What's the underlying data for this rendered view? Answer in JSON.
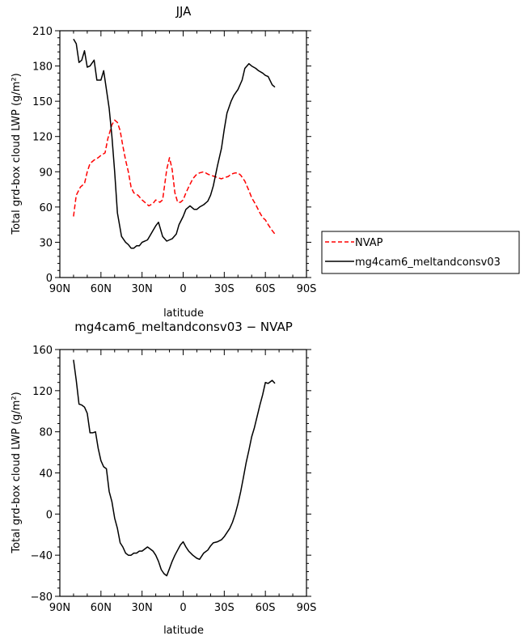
{
  "chart_data": [
    {
      "type": "line",
      "title": "JJA",
      "xlabel": "latitude",
      "ylabel": "Total grd-box cloud LWP (g/m²)",
      "xlim": [
        90,
        -90
      ],
      "ylim": [
        0,
        210
      ],
      "x_ticks": [
        90,
        60,
        30,
        0,
        -30,
        -60,
        -90
      ],
      "x_tick_labels": [
        "90N",
        "60N",
        "30N",
        "0",
        "30S",
        "60S",
        "90S"
      ],
      "y_ticks": [
        0,
        30,
        60,
        90,
        120,
        150,
        180,
        210
      ],
      "y_tick_labels": [
        "0",
        "30",
        "60",
        "90",
        "120",
        "150",
        "180",
        "210"
      ],
      "legend_position": "right",
      "series": [
        {
          "name": "NVAP",
          "color": "#ff0000",
          "dash": "dashed",
          "x": [
            80,
            78,
            75,
            72,
            70,
            68,
            65,
            62,
            60,
            57,
            55,
            52,
            50,
            48,
            46,
            44,
            42,
            40,
            38,
            36,
            33,
            30,
            27,
            25,
            22,
            20,
            17,
            15,
            12,
            10,
            8,
            6,
            4,
            2,
            0,
            -2,
            -4,
            -7,
            -10,
            -12,
            -15,
            -18,
            -20,
            -23,
            -25,
            -28,
            -30,
            -33,
            -35,
            -38,
            -40,
            -42,
            -45,
            -48,
            -50,
            -53,
            -56,
            -58,
            -60,
            -62,
            -65,
            -67
          ],
          "y": [
            52,
            70,
            77,
            80,
            90,
            97,
            100,
            102,
            104,
            106,
            118,
            130,
            134,
            132,
            125,
            112,
            100,
            90,
            77,
            72,
            70,
            66,
            63,
            61,
            63,
            66,
            64,
            66,
            92,
            102,
            92,
            72,
            64,
            64,
            66,
            72,
            77,
            84,
            88,
            89,
            90,
            88,
            87,
            86,
            85,
            84,
            85,
            86,
            88,
            89,
            89,
            87,
            82,
            74,
            68,
            62,
            55,
            51,
            49,
            45,
            40,
            37
          ]
        },
        {
          "name": "mg4cam6_meltandconsv03",
          "color": "#000000",
          "dash": "solid",
          "x": [
            80,
            78,
            76,
            74,
            72,
            70,
            68,
            65,
            63,
            60,
            58,
            56,
            54,
            52,
            50,
            48,
            45,
            42,
            40,
            38,
            36,
            34,
            32,
            30,
            28,
            26,
            24,
            22,
            20,
            18,
            15,
            12,
            10,
            8,
            5,
            3,
            0,
            -2,
            -5,
            -8,
            -10,
            -12,
            -15,
            -18,
            -20,
            -22,
            -25,
            -28,
            -30,
            -32,
            -35,
            -37,
            -40,
            -43,
            -45,
            -48,
            -50,
            -53,
            -55,
            -58,
            -60,
            -62,
            -65,
            -67
          ],
          "y": [
            203,
            199,
            183,
            185,
            193,
            179,
            180,
            185,
            168,
            168,
            176,
            160,
            144,
            120,
            90,
            55,
            35,
            30,
            28,
            25,
            25,
            27,
            27,
            30,
            31,
            32,
            36,
            40,
            44,
            47,
            35,
            31,
            32,
            33,
            37,
            45,
            52,
            58,
            61,
            58,
            58,
            60,
            62,
            65,
            70,
            78,
            95,
            110,
            126,
            140,
            150,
            155,
            160,
            168,
            178,
            182,
            180,
            178,
            176,
            174,
            172,
            171,
            164,
            162
          ]
        }
      ]
    },
    {
      "type": "line",
      "title": "mg4cam6_meltandconsv03 − NVAP",
      "xlabel": "latitude",
      "ylabel": "Total grd-box cloud LWP (g/m²)",
      "xlim": [
        90,
        -90
      ],
      "ylim": [
        -80,
        160
      ],
      "x_ticks": [
        90,
        60,
        30,
        0,
        -30,
        -60,
        -90
      ],
      "x_tick_labels": [
        "90N",
        "60N",
        "30N",
        "0",
        "30S",
        "60S",
        "90S"
      ],
      "y_ticks": [
        -80,
        -40,
        0,
        40,
        80,
        120,
        160
      ],
      "y_tick_labels": [
        "−80",
        "−40",
        "0",
        "40",
        "80",
        "120",
        "160"
      ],
      "series": [
        {
          "color": "#000000",
          "dash": "solid",
          "x": [
            80,
            78,
            76,
            74,
            72,
            70,
            68,
            66,
            64,
            62,
            60,
            58,
            56,
            54,
            52,
            50,
            48,
            46,
            44,
            42,
            40,
            38,
            36,
            34,
            32,
            30,
            28,
            26,
            24,
            22,
            20,
            18,
            16,
            14,
            12,
            10,
            8,
            6,
            4,
            2,
            0,
            -2,
            -4,
            -7,
            -10,
            -12,
            -15,
            -18,
            -20,
            -22,
            -25,
            -28,
            -30,
            -32,
            -34,
            -36,
            -38,
            -40,
            -42,
            -44,
            -46,
            -48,
            -50,
            -52,
            -54,
            -56,
            -58,
            -60,
            -62,
            -65,
            -67
          ],
          "y": [
            150,
            130,
            107,
            106,
            104,
            98,
            79,
            79,
            80,
            64,
            52,
            46,
            44,
            22,
            12,
            -4,
            -14,
            -28,
            -32,
            -38,
            -40,
            -40,
            -38,
            -38,
            -36,
            -36,
            -34,
            -32,
            -34,
            -36,
            -40,
            -46,
            -54,
            -58,
            -60,
            -53,
            -46,
            -40,
            -35,
            -30,
            -27,
            -32,
            -36,
            -40,
            -43,
            -44,
            -38,
            -35,
            -31,
            -28,
            -27,
            -25,
            -22,
            -18,
            -14,
            -8,
            0,
            10,
            22,
            36,
            50,
            62,
            75,
            84,
            95,
            106,
            116,
            128,
            127,
            130,
            127
          ]
        }
      ]
    }
  ]
}
